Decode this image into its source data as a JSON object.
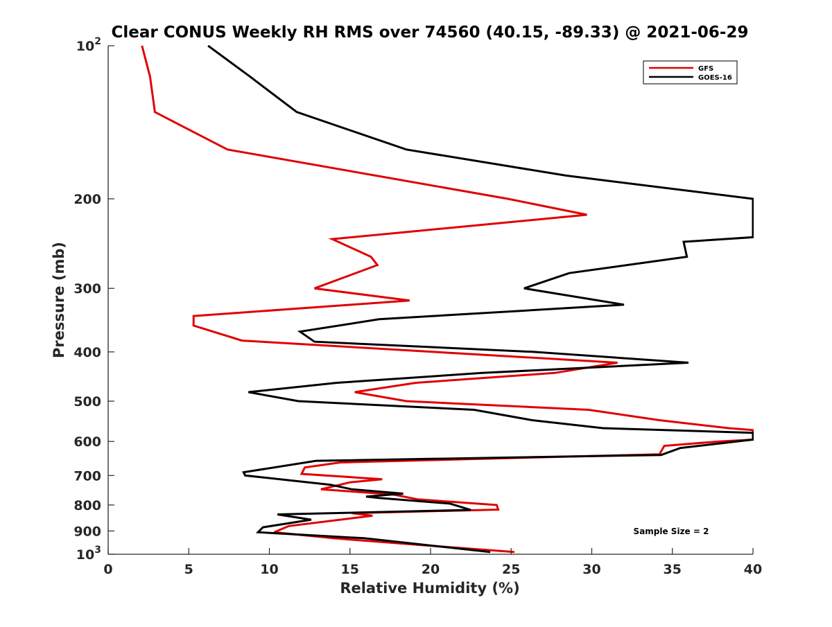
{
  "chart_data": {
    "type": "line",
    "title": "Clear CONUS Weekly RH RMS over 74560 (40.15, -89.33) @ 2021-06-29",
    "xlabel": "Relative Humidity (%)",
    "ylabel": "Pressure (mb)",
    "xlim": [
      0,
      40
    ],
    "ylim": [
      100,
      1000
    ],
    "yscale": "log",
    "y_reversed": true,
    "x_ticks": [
      "0",
      "5",
      "10",
      "15",
      "20",
      "25",
      "30",
      "35",
      "40"
    ],
    "y_ticks": [
      {
        "value": 100,
        "base": "10",
        "exp": "2"
      },
      {
        "value": 200,
        "label": "200"
      },
      {
        "value": 300,
        "label": "300"
      },
      {
        "value": 400,
        "label": "400"
      },
      {
        "value": 500,
        "label": "500"
      },
      {
        "value": 600,
        "label": "600"
      },
      {
        "value": 700,
        "label": "700"
      },
      {
        "value": 800,
        "label": "800"
      },
      {
        "value": 900,
        "label": "900"
      },
      {
        "value": 1000,
        "base": "10",
        "exp": "3"
      }
    ],
    "grid": false,
    "legend_position": "top-right",
    "annotation": "Sample Size = 2",
    "series": [
      {
        "name": "GFS",
        "color": "#e00000",
        "points": [
          [
            2.1,
            100
          ],
          [
            2.6,
            115
          ],
          [
            2.9,
            135
          ],
          [
            7.4,
            160
          ],
          [
            24.8,
            200
          ],
          [
            29.7,
            215
          ],
          [
            13.9,
            240
          ],
          [
            16.3,
            260
          ],
          [
            16.7,
            270
          ],
          [
            12.8,
            300
          ],
          [
            18.7,
            317
          ],
          [
            5.3,
            340
          ],
          [
            5.3,
            355
          ],
          [
            8.3,
            380
          ],
          [
            31.6,
            420
          ],
          [
            27.7,
            440
          ],
          [
            19.1,
            460
          ],
          [
            15.3,
            480
          ],
          [
            18.5,
            500
          ],
          [
            29.8,
            520
          ],
          [
            34.2,
            545
          ],
          [
            38.5,
            565
          ],
          [
            40.0,
            570
          ],
          [
            40.0,
            595
          ],
          [
            37.9,
            600
          ],
          [
            34.5,
            612
          ],
          [
            34.2,
            636
          ],
          [
            14.4,
            660
          ],
          [
            12.2,
            675
          ],
          [
            12.0,
            695
          ],
          [
            17.0,
            712
          ],
          [
            15.0,
            722
          ],
          [
            13.2,
            745
          ],
          [
            17.7,
            763
          ],
          [
            19.2,
            780
          ],
          [
            24.1,
            800
          ],
          [
            24.2,
            817
          ],
          [
            15.1,
            830
          ],
          [
            16.4,
            840
          ],
          [
            11.2,
            880
          ],
          [
            10.3,
            905
          ],
          [
            14.0,
            930
          ],
          [
            18.6,
            955
          ],
          [
            25.2,
            990
          ]
        ]
      },
      {
        "name": "GOES-16",
        "color": "#000000",
        "points": [
          [
            6.2,
            100
          ],
          [
            8.8,
            115
          ],
          [
            11.7,
            135
          ],
          [
            18.5,
            160
          ],
          [
            28.4,
            180
          ],
          [
            40.0,
            200
          ],
          [
            40.0,
            238
          ],
          [
            35.7,
            243
          ],
          [
            35.9,
            260
          ],
          [
            28.6,
            280
          ],
          [
            25.8,
            300
          ],
          [
            32.0,
            323
          ],
          [
            16.8,
            345
          ],
          [
            11.9,
            365
          ],
          [
            12.8,
            382
          ],
          [
            26.4,
            400
          ],
          [
            36.0,
            420
          ],
          [
            23.2,
            440
          ],
          [
            14.2,
            460
          ],
          [
            8.7,
            480
          ],
          [
            11.8,
            500
          ],
          [
            22.7,
            520
          ],
          [
            26.3,
            545
          ],
          [
            30.7,
            565
          ],
          [
            40.0,
            577
          ],
          [
            40.0,
            595
          ],
          [
            35.5,
            618
          ],
          [
            34.3,
            638
          ],
          [
            12.9,
            655
          ],
          [
            8.4,
            690
          ],
          [
            8.5,
            700
          ],
          [
            13.8,
            730
          ],
          [
            15.1,
            745
          ],
          [
            18.3,
            760
          ],
          [
            16.0,
            770
          ],
          [
            16.8,
            775
          ],
          [
            21.2,
            795
          ],
          [
            22.5,
            818
          ],
          [
            10.5,
            835
          ],
          [
            12.6,
            855
          ],
          [
            9.6,
            885
          ],
          [
            9.3,
            905
          ],
          [
            15.9,
            930
          ],
          [
            23.7,
            990
          ]
        ]
      }
    ]
  }
}
